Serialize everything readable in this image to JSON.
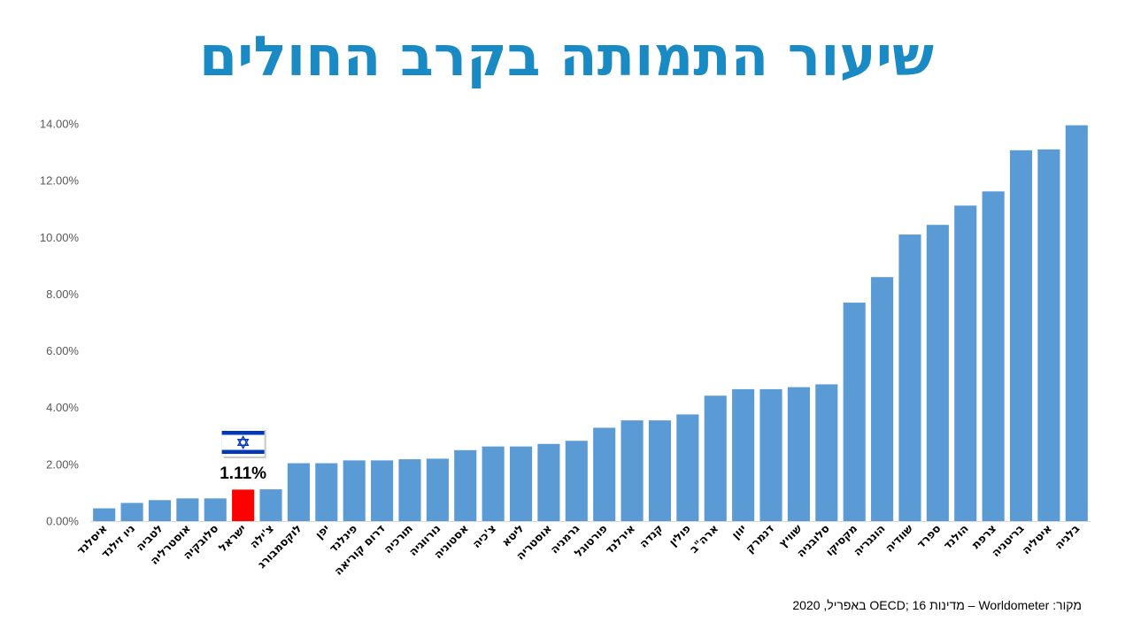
{
  "chart_data": {
    "type": "bar",
    "title": "שיעור התמותה בקרב החולים",
    "categories": [
      "איסלנד",
      "ניו זילנד",
      "לטביה",
      "אוסטרליה",
      "סלובקיה",
      "ישראל",
      "צ'ילה",
      "לוקסמבורג",
      "יפן",
      "פינלנד",
      "דרום קוריאה",
      "תורכיה",
      "נורווגיה",
      "אסטוניה",
      "צ'כיה",
      "ליטא",
      "אוסטריה",
      "גרמניה",
      "פורטוגל",
      "אירלנד",
      "קנדה",
      "פולין",
      "ארה\"ב",
      "יוון",
      "דנמרק",
      "שוויץ",
      "סלובניה",
      "מקסיקו",
      "הונגריה",
      "שוודיה",
      "ספרד",
      "הולנד",
      "צרפת",
      "בריטניה",
      "איטליה",
      "בלגיה"
    ],
    "values": [
      0.45,
      0.64,
      0.74,
      0.8,
      0.8,
      1.11,
      1.12,
      2.04,
      2.04,
      2.14,
      2.14,
      2.18,
      2.2,
      2.5,
      2.63,
      2.63,
      2.72,
      2.83,
      3.29,
      3.55,
      3.55,
      3.76,
      4.42,
      4.65,
      4.65,
      4.72,
      4.82,
      7.7,
      8.6,
      10.1,
      10.44,
      11.12,
      11.62,
      13.07,
      13.1,
      13.95
    ],
    "highlight": {
      "category": "ישראל",
      "label": "1.11%",
      "color": "#ff0000",
      "flag": "israel-flag"
    },
    "ylim": [
      0,
      14
    ],
    "yticks": [
      "0.00%",
      "2.00%",
      "4.00%",
      "6.00%",
      "8.00%",
      "10.00%",
      "12.00%",
      "14.00%"
    ],
    "bar_color": "#5b9bd5",
    "grid": false,
    "legend": "none"
  },
  "source": "מקור: Worldometer – מדינות OECD; 16 באפריל, 2020",
  "colors": {
    "title": "#1a8ac4",
    "bar": "#5b9bd5",
    "highlight": "#ff0000"
  }
}
